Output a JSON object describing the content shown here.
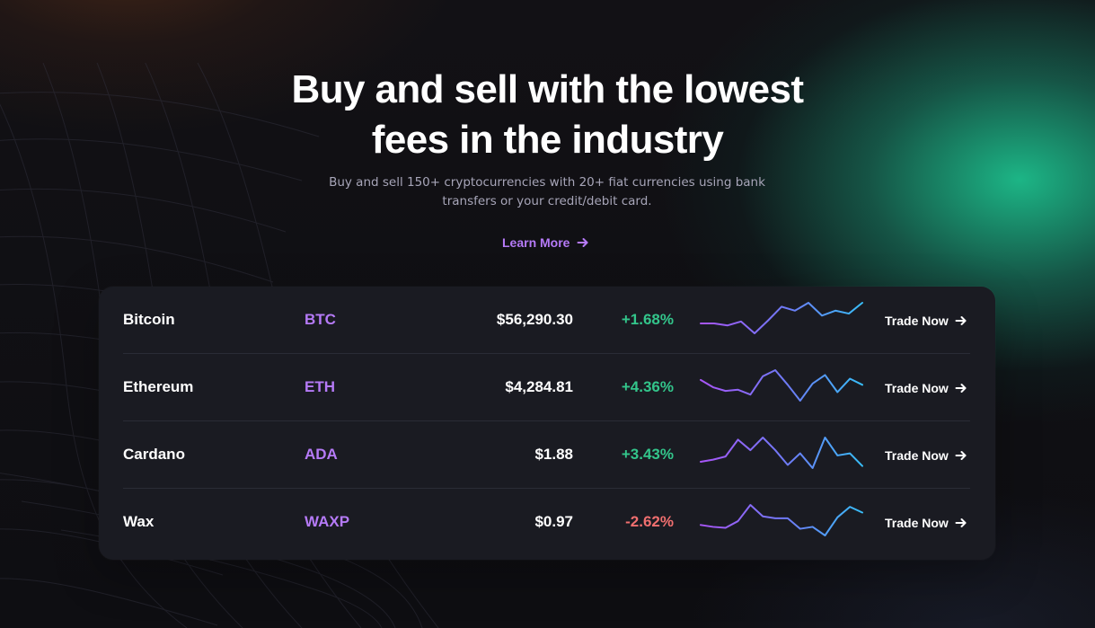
{
  "hero": {
    "title_line_1": "Buy and sell with the lowest",
    "title_line_2": "fees in the industry",
    "subtitle_line_1": "Buy and sell 150+ cryptocurrencies with 20+ fiat currencies using bank",
    "subtitle_line_2": "transfers or your credit/debit card.",
    "cta_label": "Learn More",
    "cta_icon": "arrow-right-icon"
  },
  "table": {
    "rows": [
      {
        "name": "Bitcoin",
        "symbol": "BTC",
        "price": "$56,290.30",
        "change": "+1.68%",
        "change_color": "#33c58b",
        "trade_label": "Trade Now",
        "trade_icon": "arrow-right-icon",
        "trend": [
          18,
          18,
          20,
          16,
          28,
          15,
          1,
          5,
          -3,
          10,
          5,
          8,
          -3
        ]
      },
      {
        "name": "Ethereum",
        "symbol": "ETH",
        "price": "$4,284.81",
        "change": "+4.36%",
        "change_color": "#33c58b",
        "trade_label": "Trade Now",
        "trade_icon": "arrow-right-icon",
        "trend": [
          8,
          14,
          17,
          16,
          20,
          5,
          0,
          12,
          25,
          11,
          4,
          18,
          7,
          12
        ]
      },
      {
        "name": "Cardano",
        "symbol": "ADA",
        "price": "$1.88",
        "change": "+3.43%",
        "change_color": "#33c58b",
        "trade_label": "Trade Now",
        "trade_icon": "arrow-right-icon",
        "trend": [
          23,
          21,
          18,
          2,
          12,
          0,
          12,
          26,
          15,
          29,
          0,
          17,
          15,
          27
        ]
      },
      {
        "name": "Wax",
        "symbol": "WAXP",
        "price": "$0.97",
        "change": "-2.62%",
        "change_color": "#f06f6f",
        "trade_label": "Trade Now",
        "trade_icon": "arrow-right-icon",
        "trend": [
          15,
          17,
          18,
          11,
          -6,
          6,
          8,
          8,
          19,
          17,
          26,
          7,
          -4,
          2
        ]
      }
    ]
  },
  "colors": {
    "accent_purple": "#b57af7",
    "positive": "#33c58b",
    "negative": "#f06f6f",
    "panel": "#1a1b22",
    "glow_green": "#1dbf8c"
  }
}
